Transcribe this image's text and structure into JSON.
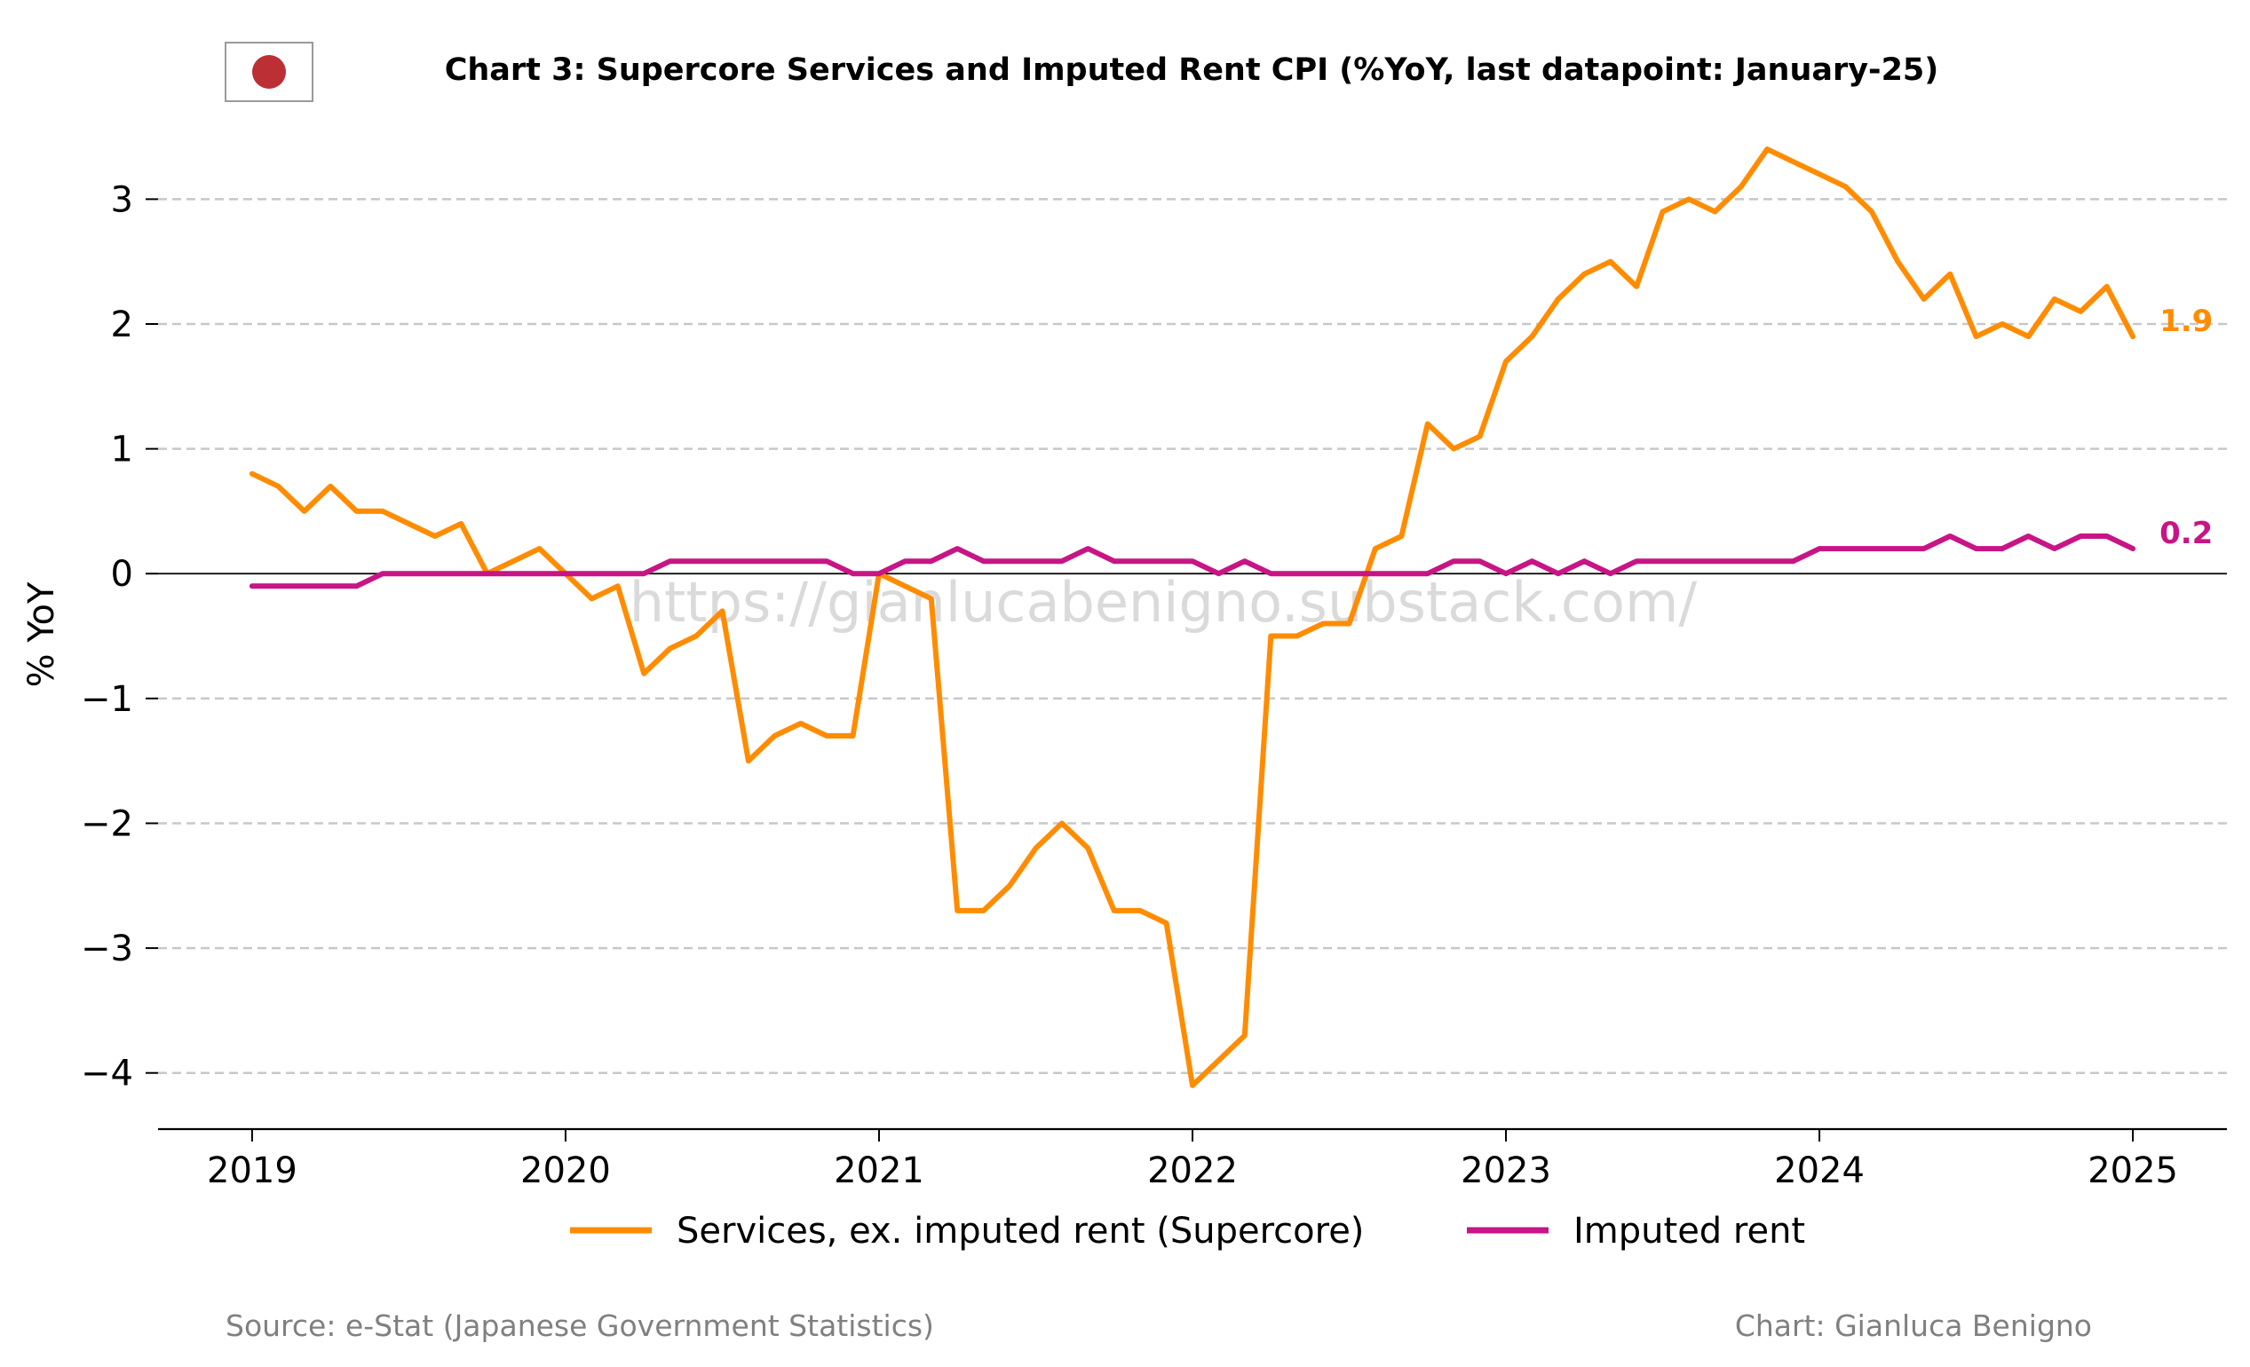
{
  "page": {
    "title": "Chart 3: Supercore Services and Imputed Rent CPI (%YoY, last datapoint: January-25)",
    "flag_icon": "japan-flag-icon",
    "watermark": "https://gianlucabenigno.substack.com/",
    "source": "Source: e-Stat (Japanese Government Statistics)",
    "credit": "Chart: Gianluca Benigno"
  },
  "chart_data": {
    "type": "line",
    "ylabel": "% YoY",
    "xlabel": "",
    "ylim": [
      -4.45,
      3.6
    ],
    "xlim": [
      2018.7,
      2025.3
    ],
    "yticks": [
      -4,
      -3,
      -2,
      -1,
      0,
      1,
      2,
      3
    ],
    "ytick_labels": [
      "−4",
      "−3",
      "−2",
      "−1",
      "0",
      "1",
      "2",
      "3"
    ],
    "xticks": [
      2019,
      2020,
      2021,
      2022,
      2023,
      2024,
      2025
    ],
    "xtick_labels": [
      "2019",
      "2020",
      "2021",
      "2022",
      "2023",
      "2024",
      "2025"
    ],
    "grid": "y-dashed",
    "legend_position": "bottom-center",
    "x_start": "2019-01",
    "x_end": "2025-01",
    "x_frequency": "monthly",
    "series": [
      {
        "name": "Services, ex. imputed rent (Supercore)",
        "color": "#ff8c00",
        "end_label": "1.9",
        "values": [
          0.8,
          0.7,
          0.5,
          0.7,
          0.5,
          0.5,
          0.4,
          0.3,
          0.4,
          0.0,
          0.1,
          0.2,
          0.0,
          -0.2,
          -0.1,
          -0.8,
          -0.6,
          -0.5,
          -0.3,
          -1.5,
          -1.3,
          -1.2,
          -1.3,
          -1.3,
          0.0,
          -0.1,
          -0.2,
          -2.7,
          -2.7,
          -2.5,
          -2.2,
          -2.0,
          -2.2,
          -2.7,
          -2.7,
          -2.8,
          -4.1,
          -3.9,
          -3.7,
          -0.5,
          -0.5,
          -0.4,
          -0.4,
          0.2,
          0.3,
          1.2,
          1.0,
          1.1,
          1.7,
          1.9,
          2.2,
          2.4,
          2.5,
          2.3,
          2.9,
          3.0,
          2.9,
          3.1,
          3.4,
          3.3,
          3.2,
          3.1,
          2.9,
          2.5,
          2.2,
          2.4,
          1.9,
          2.0,
          1.9,
          2.2,
          2.1,
          2.3,
          1.9
        ]
      },
      {
        "name": "Imputed rent",
        "color": "#c71585",
        "end_label": "0.2",
        "values": [
          -0.1,
          -0.1,
          -0.1,
          -0.1,
          -0.1,
          0.0,
          0.0,
          0.0,
          0.0,
          0.0,
          0.0,
          0.0,
          0.0,
          0.0,
          0.0,
          0.0,
          0.1,
          0.1,
          0.1,
          0.1,
          0.1,
          0.1,
          0.1,
          0.0,
          0.0,
          0.1,
          0.1,
          0.2,
          0.1,
          0.1,
          0.1,
          0.1,
          0.2,
          0.1,
          0.1,
          0.1,
          0.1,
          0.0,
          0.1,
          0.0,
          0.0,
          0.0,
          0.0,
          0.0,
          0.0,
          0.0,
          0.1,
          0.1,
          0.0,
          0.1,
          0.0,
          0.1,
          0.0,
          0.1,
          0.1,
          0.1,
          0.1,
          0.1,
          0.1,
          0.1,
          0.2,
          0.2,
          0.2,
          0.2,
          0.2,
          0.3,
          0.2,
          0.2,
          0.3,
          0.2,
          0.3,
          0.3,
          0.2
        ]
      }
    ]
  }
}
